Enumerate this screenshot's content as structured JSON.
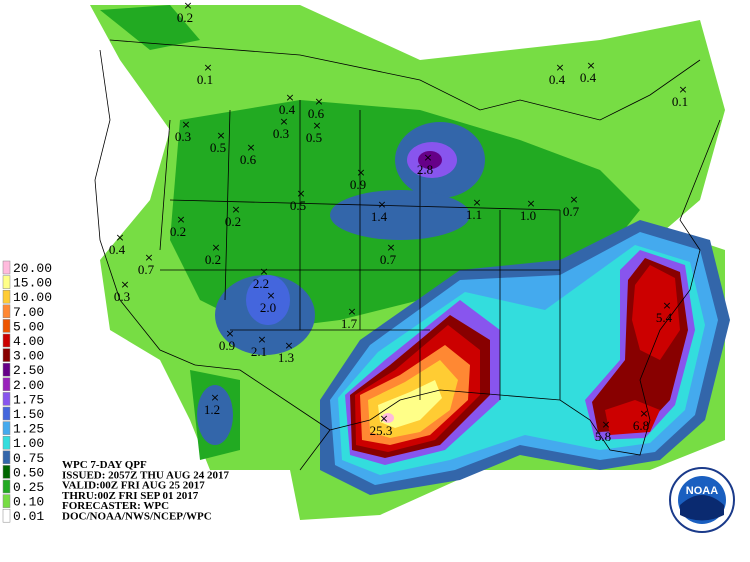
{
  "legend": {
    "items": [
      {
        "label": "20.00",
        "color": "#ffbbdd"
      },
      {
        "label": "15.00",
        "color": "#ffff88"
      },
      {
        "label": "10.00",
        "color": "#ffcc33"
      },
      {
        "label": "7.00",
        "color": "#ff8833"
      },
      {
        "label": "5.00",
        "color": "#ee5500"
      },
      {
        "label": "4.00",
        "color": "#cc0000"
      },
      {
        "label": "3.00",
        "color": "#880000"
      },
      {
        "label": "2.50",
        "color": "#660088"
      },
      {
        "label": "2.00",
        "color": "#9922bb"
      },
      {
        "label": "1.75",
        "color": "#8855ee"
      },
      {
        "label": "1.50",
        "color": "#4466dd"
      },
      {
        "label": "1.25",
        "color": "#44aaee"
      },
      {
        "label": "1.00",
        "color": "#33dddd"
      },
      {
        "label": "0.75",
        "color": "#3366aa"
      },
      {
        "label": "0.50",
        "color": "#006600"
      },
      {
        "label": "0.25",
        "color": "#22aa22"
      },
      {
        "label": "0.10",
        "color": "#77dd44"
      },
      {
        "label": "0.01",
        "color": "#ffffff"
      }
    ]
  },
  "info": {
    "lines": [
      "WPC 7-DAY QPF",
      "ISSUED: 2057Z THU AUG 24 2017",
      "VALID:00Z FRI AUG 25 2017",
      "THRU:00Z FRI SEP 01 2017",
      "FORECASTER: WPC",
      "DOC/NOAA/NWS/NCEP/WPC"
    ]
  },
  "points": [
    "0.2",
    "0.1",
    "0.4",
    "0.4",
    "0.1",
    "0.4",
    "0.6",
    "0.3",
    "0.3",
    "0.5",
    "0.5",
    "0.6",
    "2.8",
    "0.9",
    "0.5",
    "1.4",
    "1.1",
    "1.0",
    "0.7",
    "0.2",
    "0.2",
    "0.4",
    "0.2",
    "0.7",
    "0.7",
    "0.3",
    "2.2",
    "2.0",
    "1.7",
    "0.9",
    "2.1",
    "1.3",
    "1.2",
    "25.3",
    "5.4",
    "5.8",
    "6.8"
  ],
  "logo": "NOAA"
}
